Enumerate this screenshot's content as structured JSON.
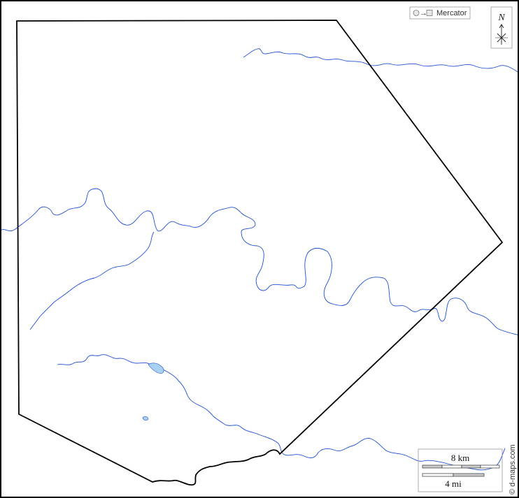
{
  "legend": {
    "projection_label": "Mercator"
  },
  "compass": {
    "north_label": "N"
  },
  "scale": {
    "km_label": "8 km",
    "mi_label": "4 mi"
  },
  "credit": "© d-maps.com",
  "colors": {
    "river": "#1f4fd1",
    "lake": "#a8d0f0",
    "boundary": "#000000",
    "frame": "#000000"
  }
}
